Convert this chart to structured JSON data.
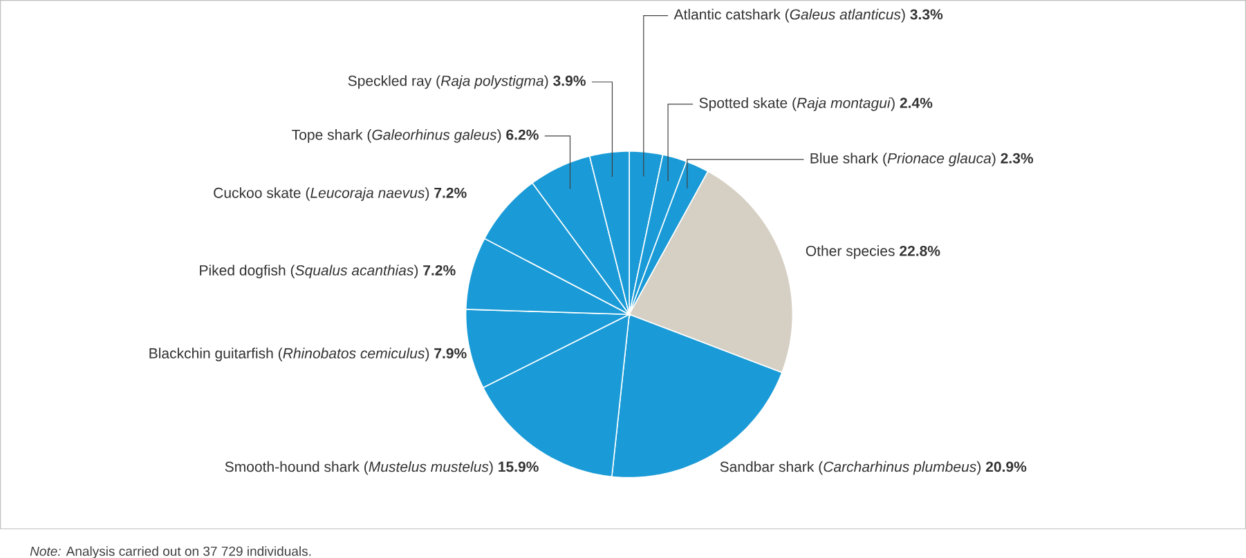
{
  "chart_data": {
    "type": "pie",
    "categories": [
      "Atlantic catshark (*Galeus atlanticus*)",
      "Spotted skate (*Raja montagui*)",
      "Blue shark (*Prionace glauca*)",
      "Other species",
      "Sandbar shark (*Carcharhinus plumbeus*)",
      "Smooth-hound shark (*Mustelus mustelus*)",
      "Blackchin guitarfish (*Rhinobatos cemiculus*)",
      "Piked dogfish (*Squalus acanthias*)",
      "Cuckoo skate (*Leucoraja naevus*)",
      "Tope shark (*Galeorhinus galeus*)",
      "Speckled ray (*Raja polystigma*)"
    ],
    "values": [
      3.3,
      2.4,
      2.3,
      22.8,
      20.9,
      15.9,
      7.9,
      7.2,
      7.2,
      6.2,
      3.9
    ],
    "value_labels": [
      "3.3%",
      "2.4%",
      "2.3%",
      "22.8%",
      "20.9%",
      "15.9%",
      "7.9%",
      "7.2%",
      "7.2%",
      "6.2%",
      "3.9%"
    ],
    "colors": [
      "#1a9bd7",
      "#1a9bd7",
      "#1a9bd7",
      "#d6cfc4",
      "#1a9bd7",
      "#1a9bd7",
      "#1a9bd7",
      "#1a9bd7",
      "#1a9bd7",
      "#1a9bd7",
      "#1a9bd7"
    ],
    "annotations": [
      "*Note:* Analysis carried out on 37 729 individuals."
    ]
  }
}
